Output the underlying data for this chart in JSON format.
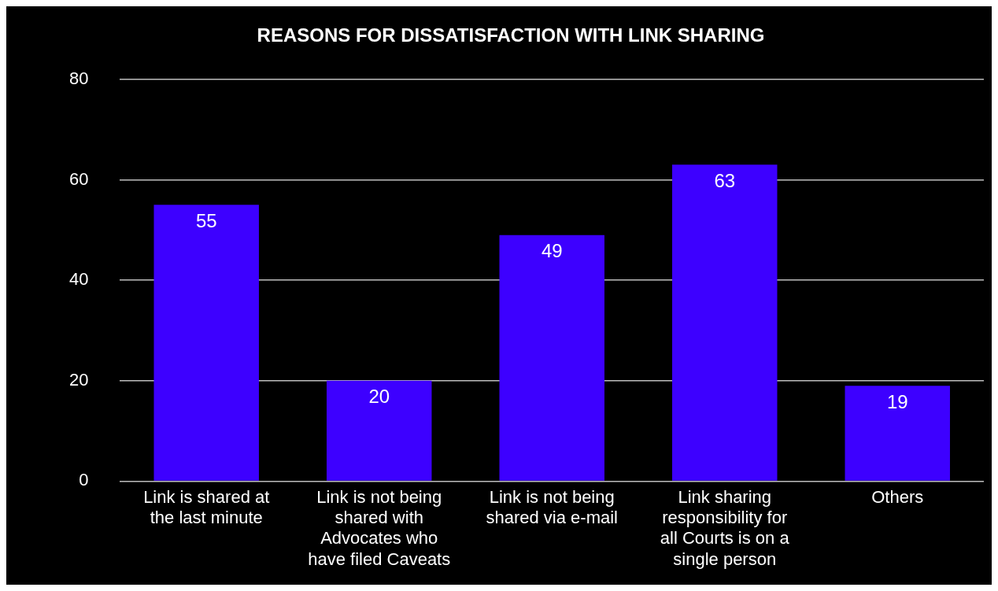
{
  "chart_data": {
    "type": "bar",
    "title": "REASONS FOR DISSATISFACTION WITH LINK SHARING",
    "categories": [
      "Link is shared at the last minute",
      "Link is not being shared with Advocates who have filed Caveats",
      "Link is not being shared via e-mail",
      "Link sharing responsibility for all Courts is on a single person",
      "Others"
    ],
    "values": [
      55,
      20,
      49,
      63,
      19
    ],
    "color": "#3d00ff",
    "ylim": [
      0,
      80
    ],
    "yticks": [
      0,
      20,
      40,
      60,
      80
    ],
    "grid": "y",
    "data_labels": true,
    "legend": false
  }
}
